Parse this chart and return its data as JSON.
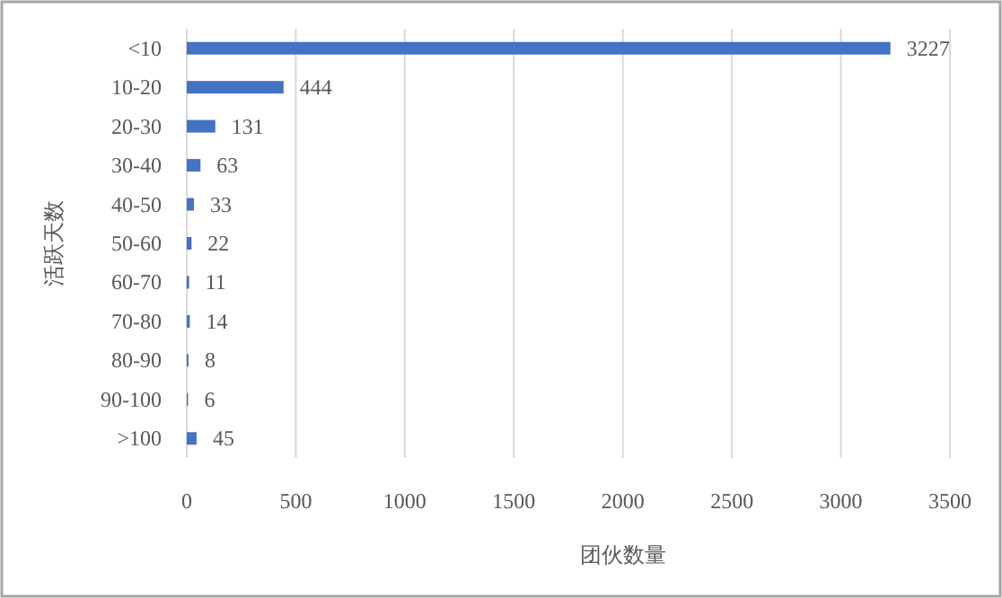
{
  "chart_data": {
    "type": "bar",
    "orientation": "horizontal",
    "xlabel": "团伙数量",
    "ylabel": "活跃天数",
    "categories": [
      "<10",
      "10-20",
      "20-30",
      "30-40",
      "40-50",
      "50-60",
      "60-70",
      "70-80",
      "80-90",
      "90-100",
      ">100"
    ],
    "values": [
      3227,
      444,
      131,
      63,
      33,
      22,
      11,
      14,
      8,
      6,
      45
    ],
    "color": "#4472c4",
    "data_labels": true,
    "grid": "x",
    "xlim": [
      0,
      3500
    ],
    "xticks": [
      0,
      500,
      1000,
      1500,
      2000,
      2500,
      3000,
      3500
    ]
  }
}
